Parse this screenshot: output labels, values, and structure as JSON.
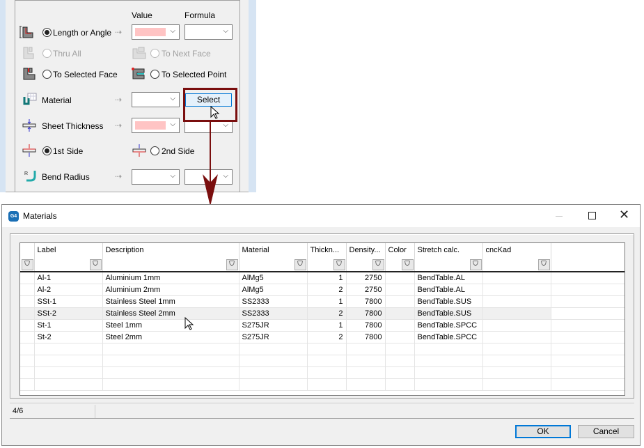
{
  "panel": {
    "headers": {
      "value": "Value",
      "formula": "Formula"
    },
    "rows": {
      "length_or_angle": "Length or Angle",
      "thru_all": "Thru All",
      "to_next_face": "To Next Face",
      "to_selected_face": "To Selected Face",
      "to_selected_point": "To Selected Point",
      "material": "Material",
      "select": "Select",
      "sheet_thickness": "Sheet Thickness",
      "first_side": "1st Side",
      "second_side": "2nd Side",
      "bend_radius": "Bend Radius"
    },
    "arrow": "⇢",
    "highlight_color": "#7a0e0e",
    "required_fill": "#ffc4c4"
  },
  "dialog": {
    "app_icon": "G4",
    "title": "Materials",
    "columns": [
      "Label",
      "Description",
      "Material",
      "Thickn...",
      "Density...",
      "Color",
      "Stretch calc.",
      "cncKad"
    ],
    "rows": [
      [
        "Al-1",
        "Aluminium 1mm",
        "AlMg5",
        "1",
        "2750",
        "",
        "BendTable.AL",
        ""
      ],
      [
        "Al-2",
        "Aluminium 2mm",
        "AlMg5",
        "2",
        "2750",
        "",
        "BendTable.AL",
        ""
      ],
      [
        "SSt-1",
        "Stainless Steel 1mm",
        "SS2333",
        "1",
        "7800",
        "",
        "BendTable.SUS",
        ""
      ],
      [
        "SSt-2",
        "Stainless Steel 2mm",
        "SS2333",
        "2",
        "7800",
        "",
        "BendTable.SUS",
        ""
      ],
      [
        "St-1",
        "Steel 1mm",
        "S275JR",
        "1",
        "7800",
        "",
        "BendTable.SPCC",
        ""
      ],
      [
        "St-2",
        "Steel 2mm",
        "S275JR",
        "2",
        "7800",
        "",
        "BendTable.SPCC",
        ""
      ]
    ],
    "selected_row": 3,
    "status": "4/6",
    "ok": "OK",
    "cancel": "Cancel"
  }
}
